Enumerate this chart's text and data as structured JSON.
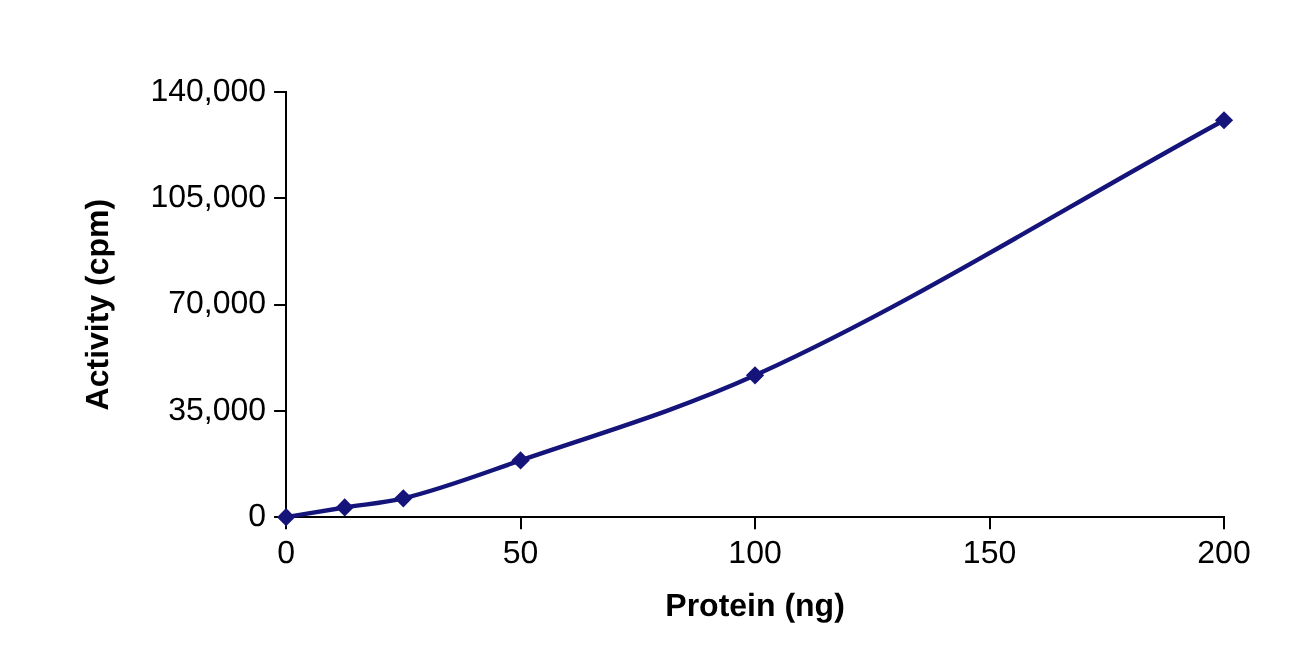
{
  "chart_data": {
    "type": "line",
    "xlabel": "Protein (ng)",
    "ylabel": "Activity (cpm)",
    "x": [
      0,
      12.5,
      25,
      50,
      100,
      200
    ],
    "series": [
      {
        "color": "#14147a",
        "values": [
          0,
          3200,
          6200,
          18700,
          46700,
          130700
        ]
      }
    ],
    "xlim": [
      0,
      200
    ],
    "xticks": [
      0,
      50,
      100,
      150,
      200
    ],
    "ylim": [
      0,
      140000
    ],
    "yticks": [
      {
        "value": 0,
        "label": "0"
      },
      {
        "value": 35000,
        "label": "35,000"
      },
      {
        "value": 70000,
        "label": "70,000"
      },
      {
        "value": 105000,
        "label": "105,000"
      },
      {
        "value": 140000,
        "label": "140,000"
      }
    ],
    "grid": false,
    "legend": false,
    "marker": "diamond",
    "line_style": "solid"
  }
}
